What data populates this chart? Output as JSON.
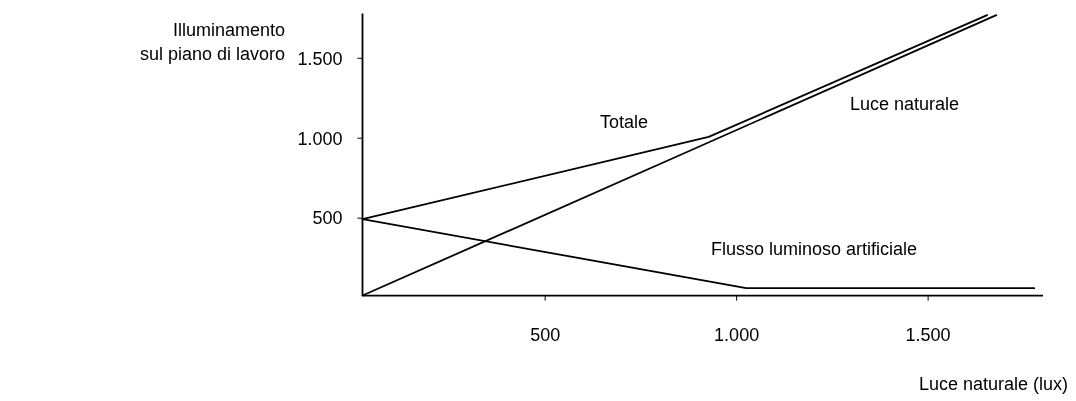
{
  "chart_data": {
    "type": "line",
    "ylabel": "Illuminamento\nsul piano di lavoro",
    "xlabel": "Luce naturale (lux)",
    "xlim": [
      23,
      1800
    ],
    "ylim": [
      15,
      1780
    ],
    "xticks": [
      500,
      {
        "value": 1000,
        "label": "1.000"
      },
      {
        "value": 1500,
        "label": "1.500"
      }
    ],
    "yticks": [
      500,
      {
        "value": 1000,
        "label": "1.000"
      },
      {
        "value": 1500,
        "label": "1.500"
      }
    ],
    "series": [
      {
        "name": "Totale",
        "color": "#000000",
        "x": [
          23,
          927,
          1654
        ],
        "values": [
          494,
          1008,
          1770
        ]
      },
      {
        "name": "Luce naturale",
        "color": "#000000",
        "x": [
          23,
          1678
        ],
        "values": [
          16,
          1770
        ]
      },
      {
        "name": "Flusso luminoso artificiale",
        "color": "#000000",
        "x": [
          23,
          1025,
          1777
        ],
        "values": [
          494,
          62,
          62
        ]
      }
    ],
    "legend": false,
    "grid": false,
    "marker": "none",
    "line_style": "solid"
  }
}
